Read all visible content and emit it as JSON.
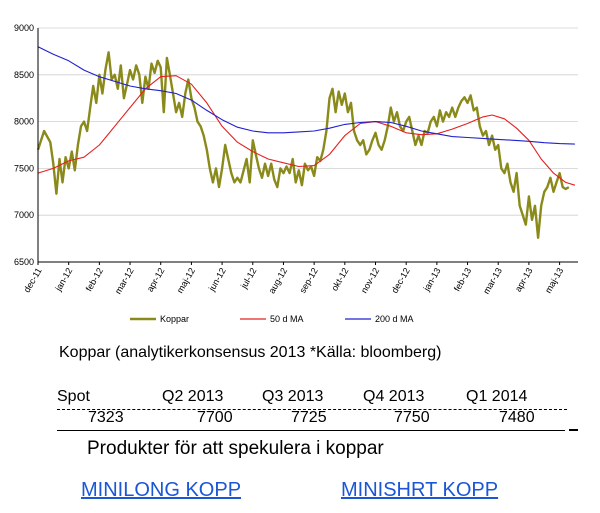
{
  "chart_data": {
    "type": "line",
    "ylim": [
      6500,
      9000
    ],
    "y_ticks": [
      "6500",
      "7000",
      "7500",
      "8000",
      "8500",
      "9000"
    ],
    "categories": [
      "dec-11",
      "jan-12",
      "feb-12",
      "mar-12",
      "apr-12",
      "maj-12",
      "jun-12",
      "jul-12",
      "aug-12",
      "sep-12",
      "okt-12",
      "nov-12",
      "dec-12",
      "jan-13",
      "feb-13",
      "mar-13",
      "apr-13",
      "maj-13"
    ],
    "series": [
      {
        "name": "Koppar",
        "color": "#8a8a1a",
        "points": [
          [
            0,
            7700
          ],
          [
            0.2,
            7900
          ],
          [
            0.4,
            7780
          ],
          [
            0.5,
            7550
          ],
          [
            0.6,
            7230
          ],
          [
            0.7,
            7600
          ],
          [
            0.8,
            7350
          ],
          [
            0.9,
            7620
          ],
          [
            1.0,
            7500
          ],
          [
            1.1,
            7680
          ],
          [
            1.2,
            7480
          ],
          [
            1.3,
            7750
          ],
          [
            1.4,
            7950
          ],
          [
            1.5,
            8000
          ],
          [
            1.6,
            7900
          ],
          [
            1.7,
            8150
          ],
          [
            1.8,
            8380
          ],
          [
            1.9,
            8200
          ],
          [
            2.0,
            8500
          ],
          [
            2.1,
            8300
          ],
          [
            2.2,
            8560
          ],
          [
            2.3,
            8740
          ],
          [
            2.4,
            8450
          ],
          [
            2.5,
            8500
          ],
          [
            2.6,
            8350
          ],
          [
            2.7,
            8600
          ],
          [
            2.8,
            8250
          ],
          [
            2.9,
            8400
          ],
          [
            3.0,
            8550
          ],
          [
            3.1,
            8450
          ],
          [
            3.2,
            8600
          ],
          [
            3.3,
            8500
          ],
          [
            3.4,
            8200
          ],
          [
            3.5,
            8480
          ],
          [
            3.6,
            8350
          ],
          [
            3.7,
            8620
          ],
          [
            3.8,
            8520
          ],
          [
            3.9,
            8650
          ],
          [
            4.0,
            8580
          ],
          [
            4.1,
            8100
          ],
          [
            4.2,
            8680
          ],
          [
            4.3,
            8500
          ],
          [
            4.4,
            8300
          ],
          [
            4.5,
            8100
          ],
          [
            4.6,
            8200
          ],
          [
            4.7,
            8050
          ],
          [
            4.8,
            8300
          ],
          [
            4.9,
            8450
          ],
          [
            5.0,
            8250
          ],
          [
            5.1,
            8150
          ],
          [
            5.2,
            8000
          ],
          [
            5.3,
            7950
          ],
          [
            5.4,
            7850
          ],
          [
            5.5,
            7700
          ],
          [
            5.6,
            7500
          ],
          [
            5.7,
            7350
          ],
          [
            5.8,
            7500
          ],
          [
            5.9,
            7300
          ],
          [
            6.0,
            7500
          ],
          [
            6.1,
            7750
          ],
          [
            6.2,
            7600
          ],
          [
            6.3,
            7450
          ],
          [
            6.4,
            7350
          ],
          [
            6.5,
            7400
          ],
          [
            6.6,
            7350
          ],
          [
            6.8,
            7600
          ],
          [
            6.9,
            7350
          ],
          [
            7.0,
            7800
          ],
          [
            7.1,
            7650
          ],
          [
            7.2,
            7500
          ],
          [
            7.3,
            7400
          ],
          [
            7.4,
            7550
          ],
          [
            7.5,
            7420
          ],
          [
            7.6,
            7550
          ],
          [
            7.7,
            7380
          ],
          [
            7.8,
            7300
          ],
          [
            7.9,
            7500
          ],
          [
            8.0,
            7450
          ],
          [
            8.1,
            7520
          ],
          [
            8.2,
            7450
          ],
          [
            8.3,
            7600
          ],
          [
            8.4,
            7350
          ],
          [
            8.5,
            7480
          ],
          [
            8.6,
            7320
          ],
          [
            8.7,
            7550
          ],
          [
            8.8,
            7480
          ],
          [
            8.9,
            7520
          ],
          [
            9.0,
            7420
          ],
          [
            9.1,
            7620
          ],
          [
            9.2,
            7580
          ],
          [
            9.3,
            7700
          ],
          [
            9.4,
            7900
          ],
          [
            9.5,
            8250
          ],
          [
            9.6,
            8350
          ],
          [
            9.7,
            8100
          ],
          [
            9.8,
            8320
          ],
          [
            9.9,
            8180
          ],
          [
            10.0,
            8300
          ],
          [
            10.1,
            8100
          ],
          [
            10.2,
            8200
          ],
          [
            10.3,
            7900
          ],
          [
            10.4,
            7800
          ],
          [
            10.5,
            7750
          ],
          [
            10.6,
            7800
          ],
          [
            10.7,
            7650
          ],
          [
            10.8,
            7700
          ],
          [
            10.9,
            7800
          ],
          [
            11.0,
            7880
          ],
          [
            11.1,
            7750
          ],
          [
            11.2,
            7700
          ],
          [
            11.3,
            7800
          ],
          [
            11.4,
            7950
          ],
          [
            11.5,
            8150
          ],
          [
            11.6,
            8000
          ],
          [
            11.7,
            8100
          ],
          [
            11.8,
            7950
          ],
          [
            11.9,
            7900
          ],
          [
            12.0,
            8000
          ],
          [
            12.1,
            8050
          ],
          [
            12.2,
            7900
          ],
          [
            12.3,
            7750
          ],
          [
            12.4,
            7850
          ],
          [
            12.5,
            7750
          ],
          [
            12.6,
            7900
          ],
          [
            12.7,
            7880
          ],
          [
            12.8,
            8000
          ],
          [
            12.9,
            8050
          ],
          [
            13.0,
            7950
          ],
          [
            13.1,
            8120
          ],
          [
            13.2,
            8000
          ],
          [
            13.3,
            8100
          ],
          [
            13.4,
            8050
          ],
          [
            13.5,
            8150
          ],
          [
            13.6,
            8050
          ],
          [
            13.7,
            8150
          ],
          [
            13.8,
            8220
          ],
          [
            13.9,
            8260
          ],
          [
            14.0,
            8200
          ],
          [
            14.1,
            8280
          ],
          [
            14.2,
            8120
          ],
          [
            14.3,
            8150
          ],
          [
            14.4,
            7950
          ],
          [
            14.5,
            7850
          ],
          [
            14.6,
            7900
          ],
          [
            14.7,
            7750
          ],
          [
            14.8,
            7850
          ],
          [
            14.9,
            7700
          ],
          [
            15.0,
            7750
          ],
          [
            15.1,
            7500
          ],
          [
            15.2,
            7450
          ],
          [
            15.3,
            7550
          ],
          [
            15.4,
            7350
          ],
          [
            15.5,
            7250
          ],
          [
            15.6,
            7450
          ],
          [
            15.7,
            7100
          ],
          [
            15.8,
            7000
          ],
          [
            15.9,
            6900
          ],
          [
            16.0,
            7200
          ],
          [
            16.1,
            6950
          ],
          [
            16.2,
            7100
          ],
          [
            16.3,
            6760
          ],
          [
            16.4,
            7100
          ],
          [
            16.5,
            7250
          ],
          [
            16.6,
            7300
          ],
          [
            16.7,
            7400
          ],
          [
            16.8,
            7250
          ],
          [
            16.9,
            7350
          ],
          [
            17.0,
            7450
          ],
          [
            17.1,
            7300
          ],
          [
            17.2,
            7280
          ],
          [
            17.3,
            7300
          ]
        ]
      },
      {
        "name": "50 d MA",
        "color": "#e52020",
        "points": [
          [
            0,
            7450
          ],
          [
            0.5,
            7500
          ],
          [
            1.0,
            7580
          ],
          [
            1.5,
            7620
          ],
          [
            2.0,
            7750
          ],
          [
            2.5,
            7950
          ],
          [
            3.0,
            8150
          ],
          [
            3.5,
            8350
          ],
          [
            4.0,
            8480
          ],
          [
            4.5,
            8490
          ],
          [
            5.0,
            8400
          ],
          [
            5.5,
            8200
          ],
          [
            6.0,
            7950
          ],
          [
            6.5,
            7780
          ],
          [
            7.0,
            7680
          ],
          [
            7.5,
            7600
          ],
          [
            8.0,
            7560
          ],
          [
            8.5,
            7520
          ],
          [
            9.0,
            7530
          ],
          [
            9.5,
            7650
          ],
          [
            10.0,
            7850
          ],
          [
            10.5,
            7980
          ],
          [
            11.0,
            8000
          ],
          [
            11.5,
            7950
          ],
          [
            12.0,
            7880
          ],
          [
            12.5,
            7860
          ],
          [
            13.0,
            7870
          ],
          [
            13.5,
            7920
          ],
          [
            14.0,
            7980
          ],
          [
            14.5,
            8050
          ],
          [
            14.8,
            8070
          ],
          [
            15.2,
            8030
          ],
          [
            15.6,
            7930
          ],
          [
            16.0,
            7800
          ],
          [
            16.4,
            7600
          ],
          [
            16.8,
            7450
          ],
          [
            17.2,
            7350
          ],
          [
            17.5,
            7320
          ]
        ]
      },
      {
        "name": "200 d MA",
        "color": "#2020d0",
        "points": [
          [
            0,
            8800
          ],
          [
            0.5,
            8720
          ],
          [
            1.0,
            8650
          ],
          [
            1.5,
            8550
          ],
          [
            2.0,
            8480
          ],
          [
            2.5,
            8430
          ],
          [
            3.0,
            8380
          ],
          [
            3.5,
            8350
          ],
          [
            4.0,
            8330
          ],
          [
            4.5,
            8300
          ],
          [
            5.0,
            8230
          ],
          [
            5.5,
            8120
          ],
          [
            6.0,
            8020
          ],
          [
            6.5,
            7940
          ],
          [
            7.0,
            7900
          ],
          [
            7.5,
            7880
          ],
          [
            8.0,
            7880
          ],
          [
            8.5,
            7890
          ],
          [
            9.0,
            7900
          ],
          [
            9.5,
            7930
          ],
          [
            10.0,
            7970
          ],
          [
            10.5,
            7990
          ],
          [
            11.0,
            8000
          ],
          [
            11.5,
            7990
          ],
          [
            12.0,
            7950
          ],
          [
            12.5,
            7900
          ],
          [
            13.0,
            7870
          ],
          [
            13.5,
            7840
          ],
          [
            14.0,
            7830
          ],
          [
            14.5,
            7820
          ],
          [
            15.0,
            7810
          ],
          [
            15.5,
            7800
          ],
          [
            16.0,
            7790
          ],
          [
            16.5,
            7775
          ],
          [
            17.0,
            7765
          ],
          [
            17.5,
            7760
          ]
        ]
      }
    ]
  },
  "caption": "Koppar (analytikerkonsensus 2013 *Källa: bloomberg)",
  "table": {
    "headers": [
      "Spot",
      "Q2 2013",
      "Q3 2013",
      "Q4 2013",
      "Q1 2014"
    ],
    "values": [
      "7323",
      "7700",
      "7725",
      "7750",
      "7480"
    ]
  },
  "products_heading": "Produkter för att spekulera i koppar",
  "links": {
    "minilong": "MINILONG KOPP",
    "minishort": "MINISHRT KOPP"
  },
  "colors": {
    "link": "#1a56d6"
  }
}
